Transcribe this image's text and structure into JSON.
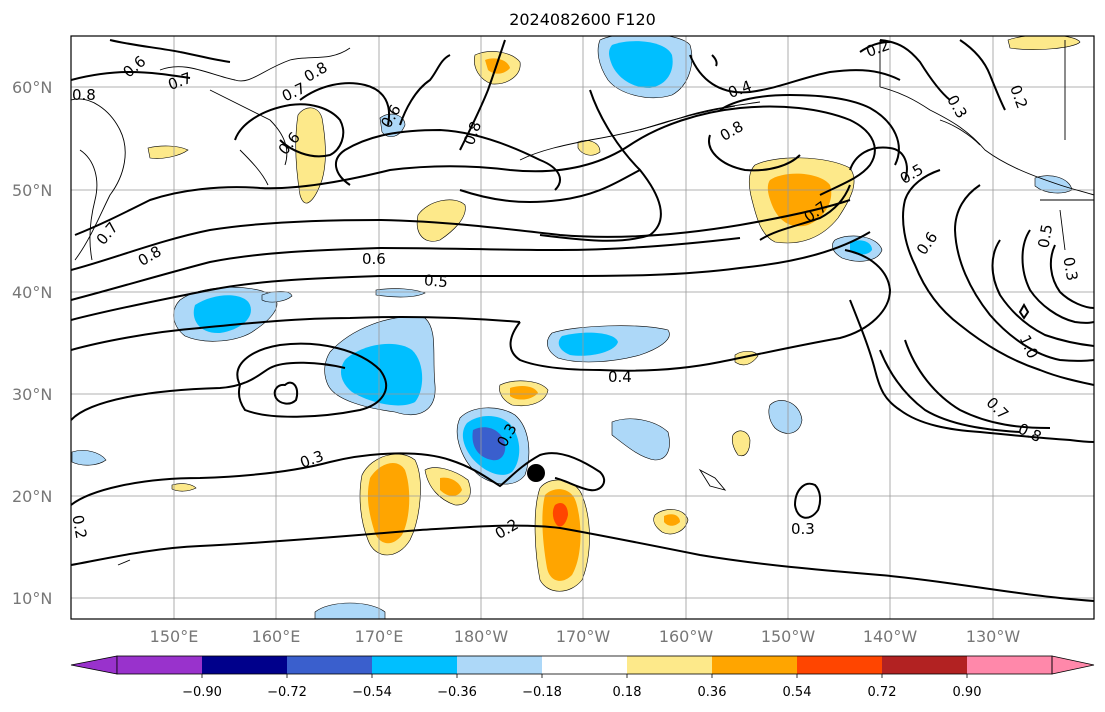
{
  "title": "2024082600 F120",
  "lat_labels": [
    "60°N",
    "50°N",
    "40°N",
    "30°N",
    "20°N",
    "10°N"
  ],
  "lon_labels": [
    "150°E",
    "160°E",
    "170°E",
    "180°W",
    "170°W",
    "160°W",
    "150°W",
    "140°W",
    "130°W"
  ],
  "colorbar": {
    "ticks": [
      "−0.90",
      "−0.72",
      "−0.54",
      "−0.36",
      "−0.18",
      "0.18",
      "0.36",
      "0.54",
      "0.72",
      "0.90"
    ],
    "colors": [
      "#9932cc",
      "#00008b",
      "#3a5fcd",
      "#00bfff",
      "#add8f8",
      "#ffffff",
      "#fde98a",
      "#ffa500",
      "#ff4500",
      "#b22222",
      "#ff88aa"
    ]
  },
  "contour_labels": [
    {
      "text": "0.6"
    },
    {
      "text": "0.7"
    },
    {
      "text": "0.8"
    },
    {
      "text": "0.7"
    },
    {
      "text": "0.8"
    },
    {
      "text": "0.6"
    },
    {
      "text": "0.6"
    },
    {
      "text": "0.8"
    },
    {
      "text": "0.4"
    },
    {
      "text": "0.2"
    },
    {
      "text": "0.3"
    },
    {
      "text": "0.2"
    },
    {
      "text": "0.8"
    },
    {
      "text": "0.5"
    },
    {
      "text": "0.7"
    },
    {
      "text": "0.6"
    },
    {
      "text": "0.5"
    },
    {
      "text": "0.3"
    },
    {
      "text": "1.0"
    },
    {
      "text": "0.7"
    },
    {
      "text": "0.8"
    },
    {
      "text": "0.6"
    },
    {
      "text": "0.5"
    },
    {
      "text": "0.4"
    },
    {
      "text": "0.3"
    },
    {
      "text": "0.3"
    },
    {
      "text": "0.2"
    },
    {
      "text": "0.2"
    },
    {
      "text": "0.3"
    },
    {
      "text": "0.7"
    },
    {
      "text": "0.8"
    }
  ],
  "marker": {
    "color": "#000000"
  }
}
